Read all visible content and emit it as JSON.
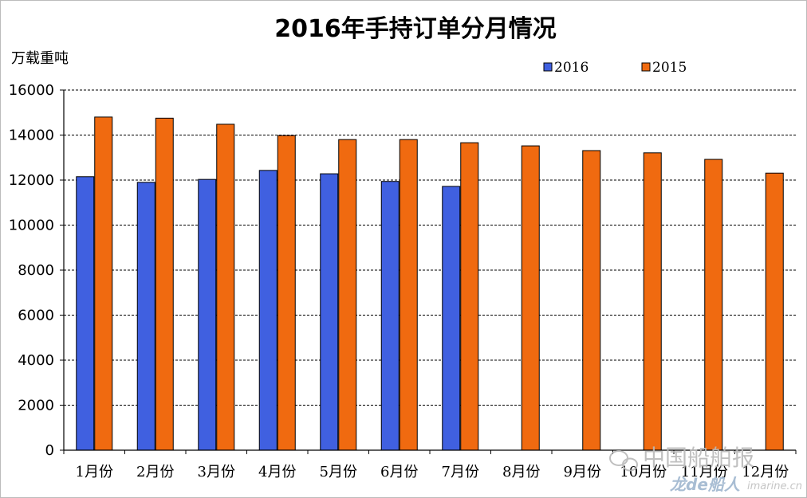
{
  "chart_data": {
    "type": "bar",
    "title": "2016年手持订单分月情况",
    "ylabel": "万载重吨",
    "xlabel": "",
    "categories": [
      "1月份",
      "2月份",
      "3月份",
      "4月份",
      "5月份",
      "6月份",
      "7月份",
      "8月份",
      "9月份",
      "10月份",
      "11月份",
      "12月份"
    ],
    "series": [
      {
        "name": "2016",
        "color": "#4060e0",
        "values": [
          12150,
          11900,
          12030,
          12430,
          12280,
          11940,
          11720,
          null,
          null,
          null,
          null,
          null
        ]
      },
      {
        "name": "2015",
        "color": "#f06a10",
        "values": [
          14800,
          14750,
          14480,
          13980,
          13800,
          13800,
          13660,
          13520,
          13310,
          13210,
          12920,
          12310
        ]
      }
    ],
    "ylim": [
      0,
      16000
    ],
    "yticks": [
      0,
      2000,
      4000,
      6000,
      8000,
      10000,
      12000,
      14000,
      16000
    ],
    "grid": "horizontal-dashed",
    "legend_position": "top-right"
  },
  "watermark": {
    "text": "中国船舶报",
    "brand": "龙de船人",
    "site": "imarine.cn",
    "icon": "wechat-icon"
  }
}
